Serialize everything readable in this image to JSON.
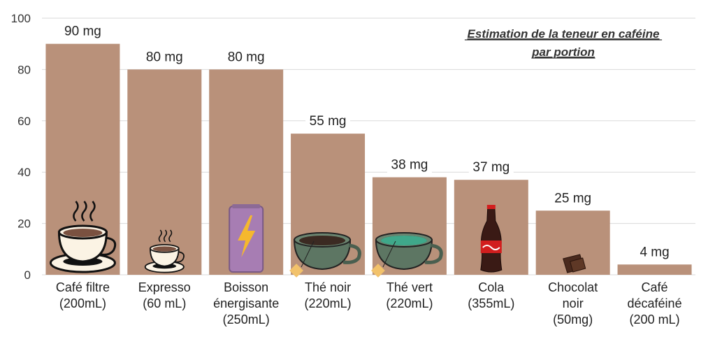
{
  "chart_data": {
    "type": "bar",
    "title": [
      "Estimation de la teneur en caféine",
      "par portion"
    ],
    "categories": [
      [
        "Café filtre",
        "(200mL)"
      ],
      [
        "Expresso",
        "(60 mL)"
      ],
      [
        "Boisson",
        "énergisante",
        "(250mL)"
      ],
      [
        "Thé noir",
        "(220mL)"
      ],
      [
        "Thé vert",
        "(220mL)"
      ],
      [
        "Cola",
        "(355mL)"
      ],
      [
        "Chocolat",
        "noir",
        "(50mg)"
      ],
      [
        "Café",
        "décaféiné",
        "(200 mL)"
      ]
    ],
    "values": [
      90,
      80,
      80,
      55,
      38,
      37,
      25,
      4
    ],
    "value_labels": [
      "90 mg",
      "80 mg",
      "80 mg",
      "55 mg",
      "38 mg",
      "37 mg",
      "25 mg",
      "4 mg"
    ],
    "icons": [
      "coffee-cup-icon",
      "espresso-cup-icon",
      "energy-drink-can-icon",
      "black-tea-cup-icon",
      "green-tea-cup-icon",
      "cola-bottle-icon",
      "dark-chocolate-icon",
      ""
    ],
    "ylim": [
      0,
      100
    ],
    "yticks": [
      0,
      20,
      40,
      60,
      80,
      100
    ],
    "grid": true,
    "xlabel": "",
    "ylabel": "",
    "colors": {
      "bar": "#b9917a",
      "grid": "#d9d9d9"
    }
  }
}
